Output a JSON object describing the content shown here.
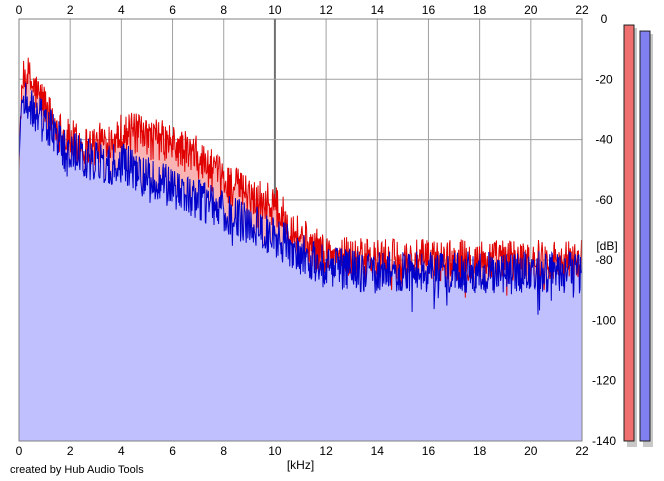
{
  "credit_text": "created by Hub Audio Tools",
  "chart_data": {
    "type": "area",
    "xlabel": "[kHz]",
    "ylabel": "[dB]",
    "xlim": [
      0,
      22
    ],
    "ylim": [
      -140,
      0
    ],
    "x_ticks": [
      0,
      2,
      4,
      6,
      8,
      10,
      12,
      14,
      16,
      18,
      20,
      22
    ],
    "y_ticks": [
      0,
      -20,
      -40,
      -60,
      -80,
      -100,
      -120,
      -140
    ],
    "y_tick_labels": [
      "0",
      "-20",
      "-40",
      "-60",
      "-80",
      "-100",
      "-120",
      "-140"
    ],
    "grid": true,
    "x_ticks_top": true,
    "y_axis_side": "right",
    "colors": {
      "background": "#ffffff",
      "grid": "#a0a0a0",
      "grid_major": "#707070",
      "fill_red": "#f9b3b3",
      "fill_blue": "#c0c0ff",
      "line_red": "#e00000",
      "line_blue": "#0000c8"
    },
    "series": [
      {
        "color": "#e00000",
        "fill": "#f9b3b3",
        "x": [
          0,
          0.1,
          0.2,
          0.3,
          0.5,
          0.8,
          1.0,
          1.2,
          1.5,
          1.8,
          2.0,
          2.5,
          3.0,
          3.5,
          4.0,
          4.5,
          5.0,
          5.5,
          6.0,
          6.5,
          7.0,
          7.5,
          8.0,
          8.5,
          9.0,
          9.5,
          10.0,
          10.5,
          11.0,
          11.5,
          12.0,
          12.5,
          13.0,
          13.5,
          14.0,
          14.5,
          15.0,
          15.5,
          16.0,
          16.5,
          17.0,
          17.5,
          18.0,
          18.5,
          19.0,
          19.5,
          20.0,
          20.5,
          21.0,
          21.5,
          22.0
        ],
        "values": [
          -45,
          -24,
          -20,
          -18,
          -22,
          -26,
          -28,
          -32,
          -36,
          -40,
          -40,
          -42,
          -42,
          -40,
          -38,
          -38,
          -40,
          -40,
          -42,
          -44,
          -46,
          -50,
          -54,
          -56,
          -58,
          -60,
          -62,
          -68,
          -72,
          -76,
          -78,
          -79,
          -79,
          -80,
          -80,
          -80,
          -80,
          -80,
          -80,
          -80,
          -80,
          -80,
          -80,
          -80,
          -80,
          -80,
          -80,
          -80,
          -80,
          -80,
          -80
        ]
      },
      {
        "color": "#0000c8",
        "fill": "#c0c0ff",
        "x": [
          0,
          0.1,
          0.2,
          0.3,
          0.5,
          0.8,
          1.0,
          1.2,
          1.5,
          1.8,
          2.0,
          2.5,
          3.0,
          3.5,
          4.0,
          4.5,
          5.0,
          5.5,
          6.0,
          6.5,
          7.0,
          7.5,
          8.0,
          8.5,
          9.0,
          9.5,
          10.0,
          10.5,
          11.0,
          11.5,
          12.0,
          12.5,
          13.0,
          13.5,
          14.0,
          14.5,
          15.0,
          15.5,
          16.0,
          16.5,
          17.0,
          17.5,
          18.0,
          18.5,
          19.0,
          19.5,
          20.0,
          20.5,
          21.0,
          21.5,
          22.0
        ],
        "values": [
          -47,
          -28,
          -26,
          -27,
          -30,
          -32,
          -34,
          -36,
          -40,
          -44,
          -44,
          -46,
          -47,
          -48,
          -48,
          -50,
          -52,
          -54,
          -56,
          -58,
          -60,
          -62,
          -64,
          -66,
          -68,
          -70,
          -72,
          -75,
          -78,
          -80,
          -82,
          -83,
          -83,
          -84,
          -84,
          -84,
          -84,
          -84,
          -84,
          -84,
          -84,
          -84,
          -84,
          -84,
          -85,
          -84,
          -84,
          -84,
          -84,
          -84,
          -84
        ]
      }
    ],
    "level_meters": [
      {
        "color": "#f07070",
        "value_db": -2
      },
      {
        "color": "#8080f0",
        "value_db": -4
      }
    ]
  }
}
